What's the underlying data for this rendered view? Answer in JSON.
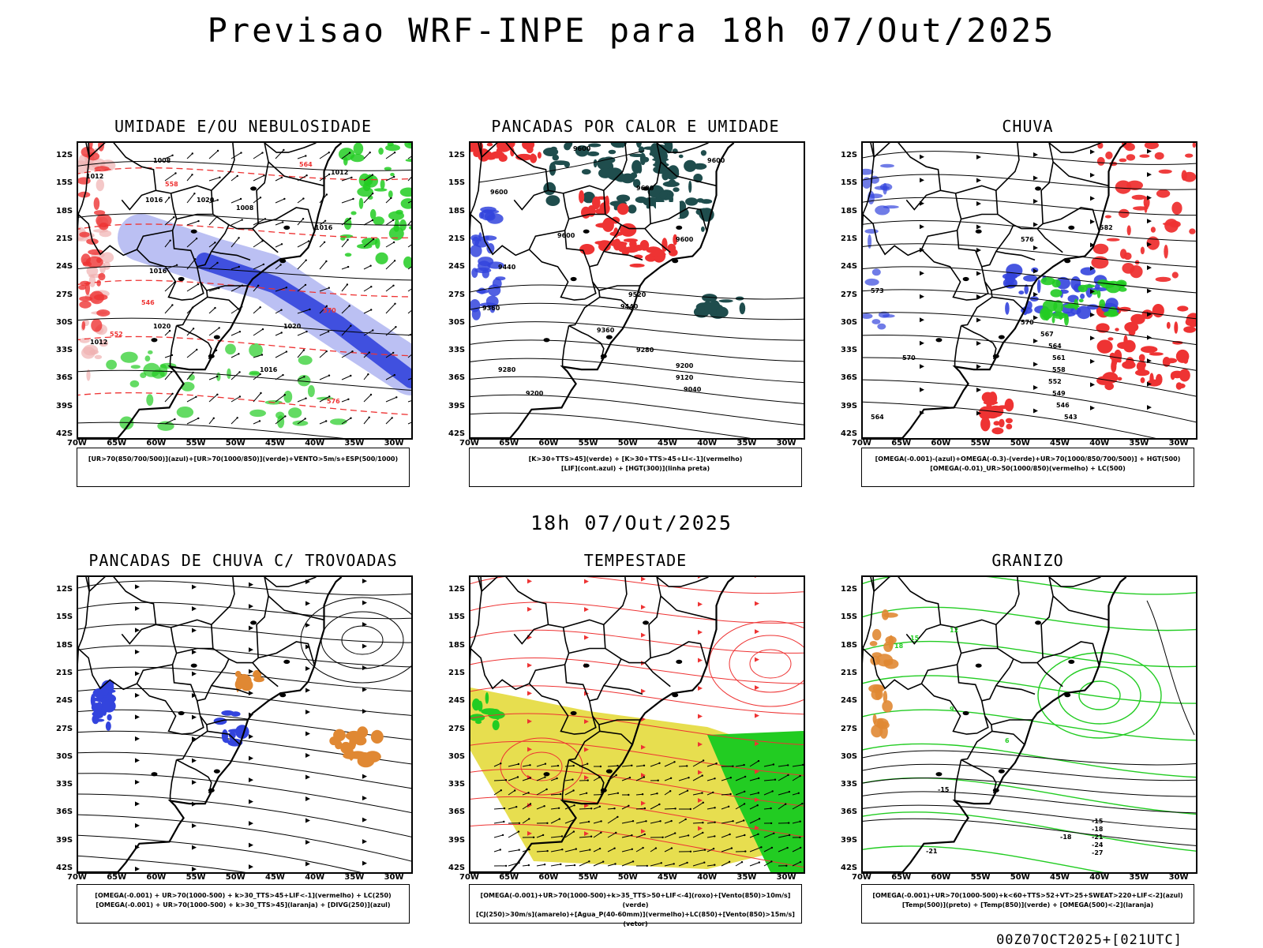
{
  "title": "Previsao WRF-INPE  para 18h 07/Out/2025",
  "mid_date": "18h 07/Out/2025",
  "footer": "00Z07OCT2025+[021UTC]",
  "lat_ticks": [
    "12S",
    "15S",
    "18S",
    "21S",
    "24S",
    "27S",
    "30S",
    "33S",
    "36S",
    "39S",
    "42S"
  ],
  "lon_ticks": [
    "70W",
    "65W",
    "60W",
    "55W",
    "50W",
    "45W",
    "40W",
    "35W",
    "30W"
  ],
  "colors": {
    "green": "#22cc22",
    "red": "#ee3333",
    "blue": "#3344dd",
    "lavender": "#aab0f0",
    "darkteal": "#1f4d4d",
    "yellow": "#e3d830",
    "orange": "#e08833"
  },
  "panels": [
    {
      "title": "UMIDADE E/OU NEBULOSIDADE",
      "legend": [
        "[UR>70(850/700/500)](azul)+[UR>70(1000/850)](verde)+VENTO>5m/s+ESP(500/1000)"
      ],
      "contours": [
        "1008",
        "1012",
        "1016",
        "1020",
        "1012",
        "1008",
        "1016",
        "1020",
        "1012",
        "1016",
        "1016",
        "1020",
        "570",
        "576",
        "564",
        "558",
        "552",
        "546"
      ]
    },
    {
      "title": "PANCADAS POR CALOR E UMIDADE",
      "legend": [
        "[K>30+TTS>45](verde) + [K>30+TTS>45+LI<-1](vermelho)",
        "[LIF](cont.azul) + [HGT(300)](linha preta)"
      ],
      "contours": [
        "9600",
        "9600",
        "9600",
        "9600",
        "9600",
        "9600",
        "9520",
        "9440",
        "9360",
        "9280",
        "9200",
        "9120",
        "9040",
        "9280",
        "9200",
        "9360",
        "9440"
      ]
    },
    {
      "title": "CHUVA",
      "legend": [
        "[OMEGA(-0.001)-(azul)+OMEGA(-0.3)-(verde)+UR>70(1000/850/700/500)] + HGT(500)",
        "[OMEGA(-0.01)_UR>50(1000/850)(vermelho) + LC(500)"
      ],
      "contours": [
        "582",
        "576",
        "573",
        "570",
        "567",
        "564",
        "561",
        "558",
        "552",
        "549",
        "546",
        "543",
        "570",
        "564"
      ]
    },
    {
      "title": "PANCADAS DE CHUVA C/ TROVOADAS",
      "legend": [
        "[OMEGA(-0.001) + UR>70(1000-500) + k>30_TTS>45+LIF<-1](vermelho) + LC(250)",
        "[OMEGA(-0.001) + UR>70(1000-500) + k>30_TTS>45](laranja) + [DIVG(250)](azul)"
      ],
      "contours": []
    },
    {
      "title": "TEMPESTADE",
      "legend": [
        "[OMEGA(-0.001)+UR>70(1000-500)+k>35_TTS>50+LIF<-4](roxo)+[Vento(850)>10m/s](verde)",
        "[CJ(250)>30m/s](amarelo)+[Agua_P(40-60mm)](vermelho)+LC(850)+[Vento(850)>15m/s](vetor)"
      ],
      "contours": []
    },
    {
      "title": "GRANIZO",
      "legend": [
        "[OMEGA(-0.001)+UR>70(1000-500)+k<60+TTS>52+VT>25+SWEAT>220+LIF<-2](azul)",
        "[Temp(500)](preto) + [Temp(850)](verde) + [OMEGA(500)<-2](laranja)"
      ],
      "contours": [
        "-15",
        "-18",
        "-21",
        "-24",
        "-27",
        "-18",
        "-21",
        "-15",
        "12",
        "15",
        "18",
        "9",
        "6"
      ]
    }
  ]
}
